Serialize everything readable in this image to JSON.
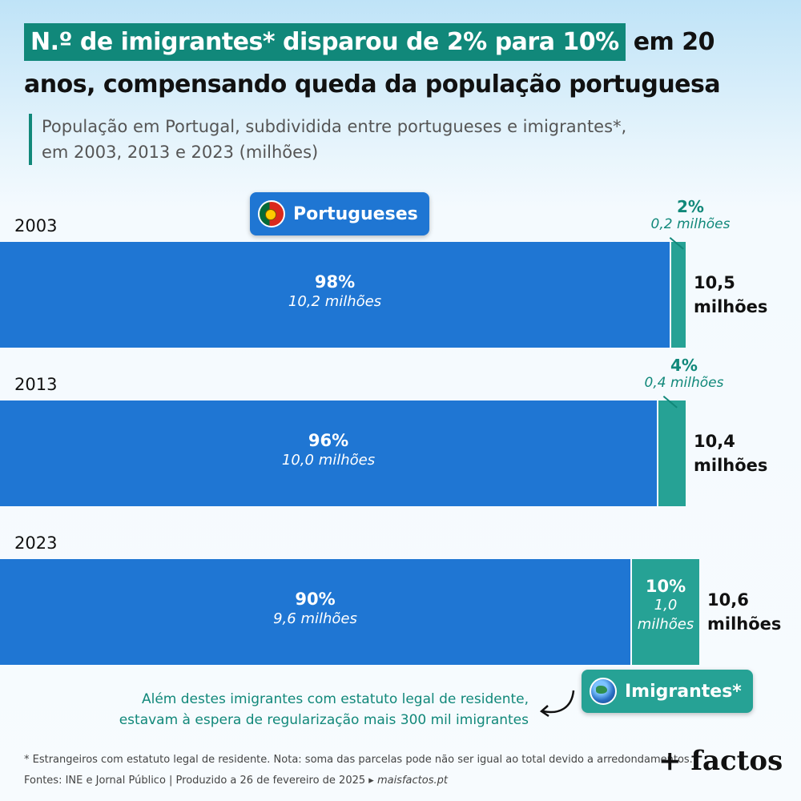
{
  "header": {
    "title_highlight": "N.º de imigrantes* disparou de 2% para 10%",
    "title_rest": "em 20",
    "title_line2": "anos, compensando queda da população portuguesa",
    "subtitle_line1": "População em Portugal, subdividida entre portugueses e imigrantes*,",
    "subtitle_line2": "em 2003, 2013 e 2023 (milhões)"
  },
  "legend": {
    "portugueses": "Portugueses",
    "imigrantes": "Imigrantes*",
    "portugueses_icon": "portugal-flag-icon",
    "imigrantes_icon": "globe-icon"
  },
  "colors": {
    "portugueses": "#1f76d3",
    "imigrantes": "#26a295",
    "accent": "#11887a"
  },
  "chart_data": {
    "type": "bar",
    "orientation": "horizontal-stacked",
    "categories": [
      "2003",
      "2013",
      "2023"
    ],
    "series": [
      {
        "name": "Portugueses",
        "values": [
          10.2,
          10.0,
          9.6
        ],
        "percent_labels": [
          "98%",
          "96%",
          "90%"
        ],
        "value_labels": [
          "10,2 milhões",
          "10,0 milhões",
          "9,6 milhões"
        ]
      },
      {
        "name": "Imigrantes*",
        "values": [
          0.2,
          0.4,
          1.0
        ],
        "percent_labels": [
          "2%",
          "4%",
          "10%"
        ],
        "value_labels": [
          "0,2 milhões",
          "0,4 milhões",
          "1,0 milhões"
        ]
      }
    ],
    "totals": [
      {
        "num": "10,5",
        "unit": "milhões"
      },
      {
        "num": "10,4",
        "unit": "milhões"
      },
      {
        "num": "10,6",
        "unit": "milhões"
      }
    ]
  },
  "note": {
    "line1": "Além destes imigrantes com estatuto legal de residente,",
    "line2": "estavam à espera de regularização mais 300 mil imigrantes"
  },
  "footer": {
    "line1": "* Estrangeiros com estatuto legal de residente. Nota: soma das parcelas pode não ser igual ao total devido a arredondamentos.",
    "sources": "Fontes: INE e Jornal Público  |  Produzido a 26 de fevereiro de 2025 ▸",
    "site": "maisfactos.pt",
    "logo": "+ factos"
  }
}
